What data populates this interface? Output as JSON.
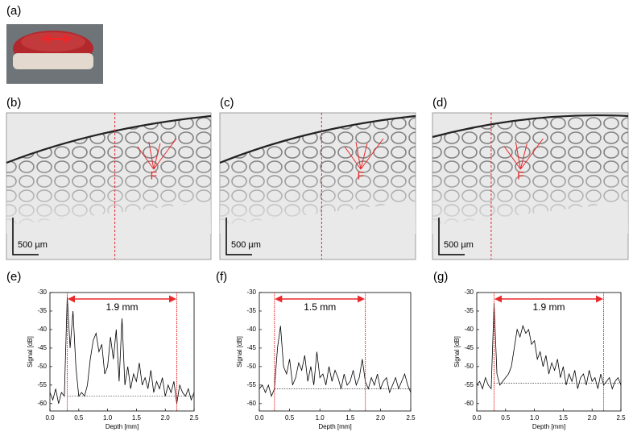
{
  "photo": {
    "label": "(a)"
  },
  "images": [
    {
      "label": "(b)",
      "annotation": "F",
      "scale_bar": "500 µm"
    },
    {
      "label": "(c)",
      "annotation": "F",
      "scale_bar": "500 µm"
    },
    {
      "label": "(d)",
      "annotation": "F",
      "scale_bar": "500 µm"
    }
  ],
  "chart_data": [
    {
      "type": "line",
      "label": "(e)",
      "xlabel": "Depth [mm]",
      "ylabel": "Signal [dB]",
      "annotation": "1.9 mm",
      "xlim": [
        0,
        2.5
      ],
      "ylim": [
        -62,
        -30
      ],
      "xticks": [
        {
          "value": 0,
          "label": "0.0"
        },
        0.5,
        {
          "value": 1,
          "label": "1.0"
        },
        1.5,
        {
          "value": 2,
          "label": "2.0"
        },
        2.5
      ],
      "yticks": [
        -30,
        -35,
        -40,
        -45,
        -50,
        -55,
        -60
      ],
      "markers": [
        0.3,
        2.2
      ],
      "marker_color": "#e8282b",
      "baseline": -58,
      "x": [
        0,
        0.05,
        0.1,
        0.15,
        0.2,
        0.25,
        0.3,
        0.35,
        0.4,
        0.45,
        0.5,
        0.55,
        0.6,
        0.65,
        0.7,
        0.75,
        0.8,
        0.85,
        0.9,
        0.95,
        1,
        1.05,
        1.1,
        1.15,
        1.2,
        1.25,
        1.3,
        1.35,
        1.4,
        1.45,
        1.5,
        1.55,
        1.6,
        1.65,
        1.7,
        1.75,
        1.8,
        1.85,
        1.9,
        1.95,
        2,
        2.05,
        2.1,
        2.15,
        2.2,
        2.25,
        2.3,
        2.35,
        2.4,
        2.45,
        2.5
      ],
      "series": [
        {
          "color": "#000000",
          "values": [
            -57,
            -59,
            -56,
            -60,
            -57,
            -58,
            -31,
            -45,
            -35,
            -50,
            -58,
            -57,
            -58,
            -55,
            -48,
            -43,
            -41,
            -46,
            -44,
            -52,
            -50,
            -42,
            -48,
            -40,
            -54,
            -37,
            -55,
            -50,
            -56,
            -52,
            -54,
            -49,
            -55,
            -53,
            -56,
            -51,
            -57,
            -54,
            -56,
            -53,
            -58,
            -55,
            -57,
            -54,
            -60,
            -55,
            -57,
            -58,
            -56,
            -59,
            -57
          ]
        }
      ]
    },
    {
      "type": "line",
      "label": "(f)",
      "xlabel": "Depth [mm]",
      "ylabel": "Signal [dB]",
      "annotation": "1.5 mm",
      "xlim": [
        0,
        2.5
      ],
      "ylim": [
        -62,
        -30
      ],
      "xticks": [
        {
          "value": 0,
          "label": "0.0"
        },
        0.5,
        {
          "value": 1,
          "label": "1.0"
        },
        1.5,
        {
          "value": 2,
          "label": "2.0"
        },
        2.5
      ],
      "yticks": [
        -30,
        -35,
        -40,
        -45,
        -50,
        -55,
        -60
      ],
      "markers": [
        0.25,
        1.75
      ],
      "marker_color": "#e8282b",
      "baseline": -56,
      "x": [
        0,
        0.05,
        0.1,
        0.15,
        0.2,
        0.25,
        0.3,
        0.35,
        0.4,
        0.45,
        0.5,
        0.55,
        0.6,
        0.65,
        0.7,
        0.75,
        0.8,
        0.85,
        0.9,
        0.95,
        1,
        1.05,
        1.1,
        1.15,
        1.2,
        1.25,
        1.3,
        1.35,
        1.4,
        1.45,
        1.5,
        1.55,
        1.6,
        1.65,
        1.7,
        1.75,
        1.8,
        1.85,
        1.9,
        1.95,
        2,
        2.05,
        2.1,
        2.15,
        2.2,
        2.25,
        2.3,
        2.35,
        2.4,
        2.45,
        2.5
      ],
      "series": [
        {
          "color": "#000000",
          "values": [
            -56,
            -55,
            -57,
            -55,
            -58,
            -56,
            -45,
            -39,
            -50,
            -52,
            -48,
            -55,
            -53,
            -49,
            -51,
            -47,
            -54,
            -50,
            -55,
            -46,
            -53,
            -52,
            -55,
            -50,
            -54,
            -51,
            -53,
            -56,
            -52,
            -55,
            -54,
            -51,
            -55,
            -53,
            -48,
            -54,
            -56,
            -53,
            -55,
            -52,
            -56,
            -54,
            -53,
            -57,
            -55,
            -53,
            -56,
            -54,
            -52,
            -55,
            -57
          ]
        }
      ]
    },
    {
      "type": "line",
      "label": "(g)",
      "xlabel": "Depth [mm]",
      "ylabel": "Signal [dB]",
      "annotation": "1.9 mm",
      "xlim": [
        0,
        2.5
      ],
      "ylim": [
        -62,
        -30
      ],
      "xticks": [
        {
          "value": 0,
          "label": "0.0"
        },
        0.5,
        {
          "value": 1,
          "label": "1.0"
        },
        1.5,
        {
          "value": 2,
          "label": "2.0"
        },
        2.5
      ],
      "yticks": [
        -30,
        -35,
        -40,
        -45,
        -50,
        -55,
        -60
      ],
      "markers": [
        0.3,
        2.2
      ],
      "marker_color": "#e8282b",
      "baseline": -54.5,
      "x": [
        0,
        0.05,
        0.1,
        0.15,
        0.2,
        0.25,
        0.3,
        0.35,
        0.4,
        0.45,
        0.5,
        0.55,
        0.6,
        0.65,
        0.7,
        0.75,
        0.8,
        0.85,
        0.9,
        0.95,
        1,
        1.05,
        1.1,
        1.15,
        1.2,
        1.25,
        1.3,
        1.35,
        1.4,
        1.45,
        1.5,
        1.55,
        1.6,
        1.65,
        1.7,
        1.75,
        1.8,
        1.85,
        1.9,
        1.95,
        2,
        2.05,
        2.1,
        2.15,
        2.2,
        2.25,
        2.3,
        2.35,
        2.4,
        2.45,
        2.5
      ],
      "series": [
        {
          "color": "#000000",
          "values": [
            -55,
            -54,
            -56,
            -53,
            -55,
            -56,
            -33,
            -52,
            -55,
            -54,
            -53,
            -52,
            -50,
            -45,
            -40,
            -42,
            -39,
            -41,
            -40,
            -44,
            -43,
            -48,
            -46,
            -50,
            -47,
            -52,
            -49,
            -51,
            -48,
            -53,
            -50,
            -55,
            -52,
            -54,
            -51,
            -56,
            -53,
            -52,
            -55,
            -51,
            -54,
            -53,
            -56,
            -52,
            -55,
            -54,
            -53,
            -56,
            -54,
            -53,
            -55
          ]
        }
      ]
    }
  ]
}
